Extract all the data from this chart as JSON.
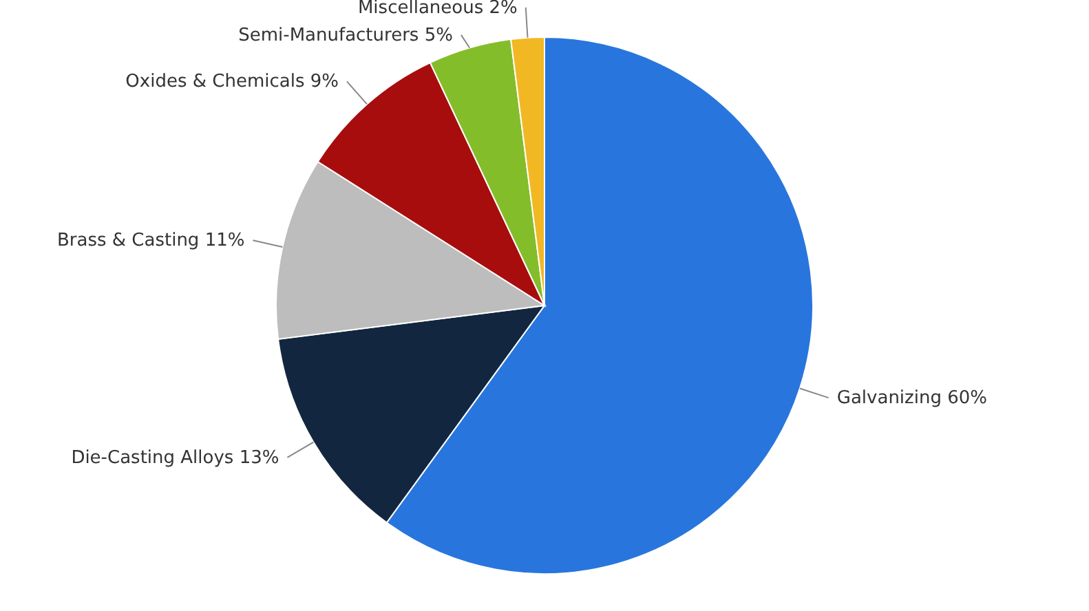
{
  "chart_data": {
    "type": "pie",
    "categories": [
      "Galvanizing",
      "Die-Casting Alloys",
      "Brass & Casting",
      "Oxides & Chemicals",
      "Semi-Manufacturers",
      "Miscellaneous"
    ],
    "values": [
      60,
      13,
      11,
      9,
      5,
      2
    ],
    "value_labels": [
      "60%",
      "13%",
      "11%",
      "9%",
      "5%",
      "2%"
    ],
    "colors": [
      "#2876dd",
      "#13263f",
      "#bdbdbd",
      "#a80d0d",
      "#84bd2a",
      "#f1b823"
    ]
  }
}
